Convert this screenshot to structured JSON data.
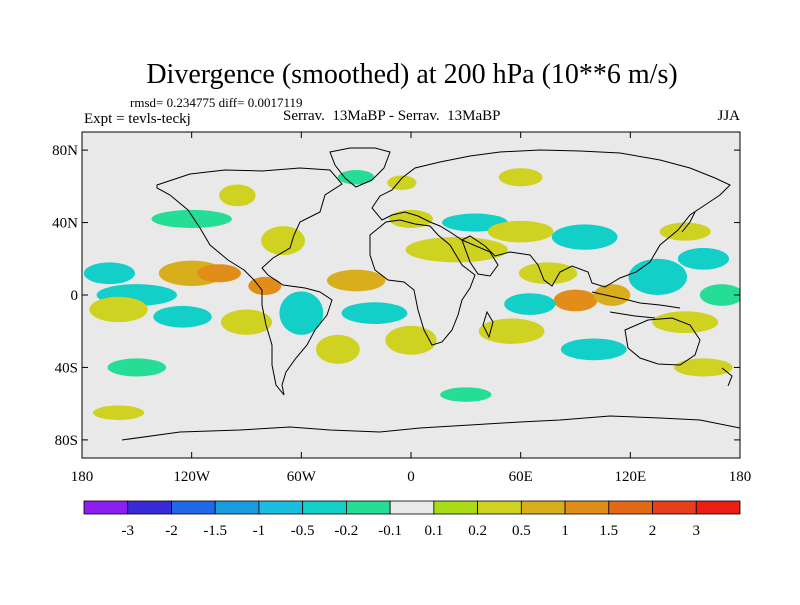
{
  "chart_data": {
    "type": "heatmap",
    "title": "Divergence (smoothed) at 200 hPa (10**6 m/s)",
    "stats_line": "rmsd= 0.234775 diff= 0.0017119",
    "experiment_label": "Expt = tevls-teckj",
    "comparison_label": "Serrav.  13MaBP - Serrav.  13MaBP",
    "season_label": "JJA",
    "xlim": [
      -180,
      180
    ],
    "ylim": [
      -90,
      90
    ],
    "x_ticks": [
      {
        "value": -180,
        "label": "180"
      },
      {
        "value": -120,
        "label": "120W"
      },
      {
        "value": -60,
        "label": "60W"
      },
      {
        "value": 0,
        "label": "0"
      },
      {
        "value": 60,
        "label": "60E"
      },
      {
        "value": 120,
        "label": "120E"
      },
      {
        "value": 180,
        "label": "180"
      }
    ],
    "y_ticks": [
      {
        "value": 80,
        "label": "80N"
      },
      {
        "value": 40,
        "label": "40N"
      },
      {
        "value": 0,
        "label": "0"
      },
      {
        "value": -40,
        "label": "40S"
      },
      {
        "value": -80,
        "label": "80S"
      }
    ],
    "colorbar": {
      "colors": [
        "#8d1ff0",
        "#3a2bd9",
        "#1f68e6",
        "#1a9bde",
        "#1bbde0",
        "#12cfc8",
        "#26dd96",
        "#e9e9e9",
        "#a9dc15",
        "#cfd220",
        "#d8ae1c",
        "#e08d1a",
        "#e26a17",
        "#e6401a",
        "#ec1e14"
      ],
      "labels": [
        "-3",
        "-2",
        "-1.5",
        "-1",
        "-0.5",
        "-0.2",
        "-0.1",
        "0.1",
        "0.2",
        "0.5",
        "1",
        "1.5",
        "2",
        "3"
      ]
    },
    "features": [
      {
        "lon": -165,
        "lat": 12,
        "rx": 14,
        "ry": 6,
        "level": -0.5
      },
      {
        "lon": -150,
        "lat": 0,
        "rx": 22,
        "ry": 6,
        "level": -0.3
      },
      {
        "lon": -160,
        "lat": -8,
        "rx": 16,
        "ry": 7,
        "level": 0.35
      },
      {
        "lon": -120,
        "lat": 12,
        "rx": 18,
        "ry": 7,
        "level": 0.6
      },
      {
        "lon": -105,
        "lat": 12,
        "rx": 12,
        "ry": 5,
        "level": 1.2
      },
      {
        "lon": -80,
        "lat": 5,
        "rx": 9,
        "ry": 5,
        "level": 1.0
      },
      {
        "lon": -125,
        "lat": -12,
        "rx": 16,
        "ry": 6,
        "level": -0.3
      },
      {
        "lon": -90,
        "lat": -15,
        "rx": 14,
        "ry": 7,
        "level": 0.3
      },
      {
        "lon": -60,
        "lat": -10,
        "rx": 12,
        "ry": 12,
        "level": -0.5
      },
      {
        "lon": -70,
        "lat": 30,
        "rx": 12,
        "ry": 8,
        "level": 0.35
      },
      {
        "lon": -120,
        "lat": 42,
        "rx": 22,
        "ry": 5,
        "level": -0.15
      },
      {
        "lon": -95,
        "lat": 55,
        "rx": 10,
        "ry": 6,
        "level": 0.25
      },
      {
        "lon": -30,
        "lat": 8,
        "rx": 16,
        "ry": 6,
        "level": 0.5
      },
      {
        "lon": -20,
        "lat": -10,
        "rx": 18,
        "ry": 6,
        "level": -0.3
      },
      {
        "lon": -40,
        "lat": -30,
        "rx": 12,
        "ry": 8,
        "level": 0.35
      },
      {
        "lon": 0,
        "lat": -25,
        "rx": 14,
        "ry": 8,
        "level": 0.35
      },
      {
        "lon": 25,
        "lat": 25,
        "rx": 28,
        "ry": 7,
        "level": 0.35
      },
      {
        "lon": 35,
        "lat": 40,
        "rx": 18,
        "ry": 5,
        "level": -0.3
      },
      {
        "lon": 0,
        "lat": 42,
        "rx": 12,
        "ry": 5,
        "level": 0.3
      },
      {
        "lon": 60,
        "lat": 35,
        "rx": 18,
        "ry": 6,
        "level": 0.3
      },
      {
        "lon": 95,
        "lat": 32,
        "rx": 18,
        "ry": 7,
        "level": -0.5
      },
      {
        "lon": 75,
        "lat": 12,
        "rx": 16,
        "ry": 6,
        "level": 0.3
      },
      {
        "lon": 90,
        "lat": -3,
        "rx": 12,
        "ry": 6,
        "level": 1.2
      },
      {
        "lon": 110,
        "lat": 0,
        "rx": 10,
        "ry": 6,
        "level": 0.55
      },
      {
        "lon": 135,
        "lat": 10,
        "rx": 16,
        "ry": 10,
        "level": -0.5
      },
      {
        "lon": 160,
        "lat": 20,
        "rx": 14,
        "ry": 6,
        "level": -0.3
      },
      {
        "lon": 150,
        "lat": 35,
        "rx": 14,
        "ry": 5,
        "level": 0.3
      },
      {
        "lon": 65,
        "lat": -5,
        "rx": 14,
        "ry": 6,
        "level": -0.3
      },
      {
        "lon": 55,
        "lat": -20,
        "rx": 18,
        "ry": 7,
        "level": 0.35
      },
      {
        "lon": 100,
        "lat": -30,
        "rx": 18,
        "ry": 6,
        "level": -0.3
      },
      {
        "lon": 150,
        "lat": -15,
        "rx": 18,
        "ry": 6,
        "level": 0.3
      },
      {
        "lon": 170,
        "lat": 0,
        "rx": 12,
        "ry": 6,
        "level": -0.2
      },
      {
        "lon": 160,
        "lat": -40,
        "rx": 16,
        "ry": 5,
        "level": 0.3
      },
      {
        "lon": -150,
        "lat": -40,
        "rx": 16,
        "ry": 5,
        "level": -0.2
      },
      {
        "lon": -160,
        "lat": -65,
        "rx": 14,
        "ry": 4,
        "level": 0.25
      },
      {
        "lon": 30,
        "lat": -55,
        "rx": 14,
        "ry": 4,
        "level": -0.15
      },
      {
        "lon": 60,
        "lat": 65,
        "rx": 12,
        "ry": 5,
        "level": 0.25
      },
      {
        "lon": -30,
        "lat": 65,
        "rx": 10,
        "ry": 4,
        "level": -0.15
      },
      {
        "lon": -5,
        "lat": 62,
        "rx": 8,
        "ry": 4,
        "level": 0.25
      }
    ]
  }
}
